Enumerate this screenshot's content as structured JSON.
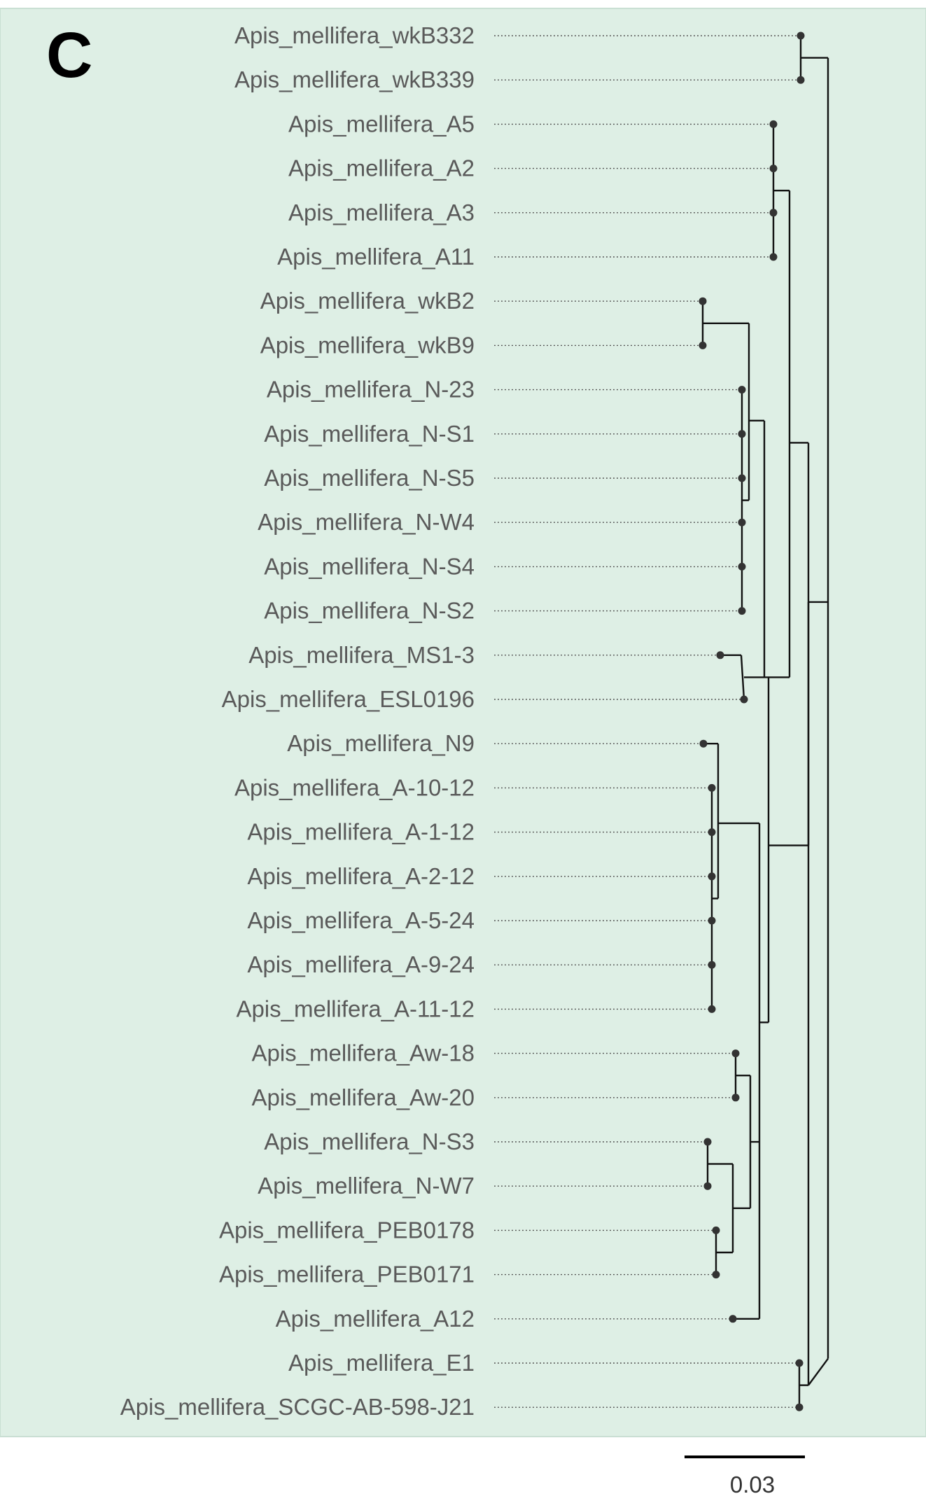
{
  "panel": {
    "letter": "C",
    "background_color": "#deefe5",
    "edge_color": "#c9dfd3"
  },
  "tree": {
    "leaves": [
      "Apis_mellifera_wkB332",
      "Apis_mellifera_wkB339",
      "Apis_mellifera_A5",
      "Apis_mellifera_A2",
      "Apis_mellifera_A3",
      "Apis_mellifera_A11",
      "Apis_mellifera_wkB2",
      "Apis_mellifera_wkB9",
      "Apis_mellifera_N-23",
      "Apis_mellifera_N-S1",
      "Apis_mellifera_N-S5",
      "Apis_mellifera_N-W4",
      "Apis_mellifera_N-S4",
      "Apis_mellifera_N-S2",
      "Apis_mellifera_MS1-3",
      "Apis_mellifera_ESL0196",
      "Apis_mellifera_N9",
      "Apis_mellifera_A-10-12",
      "Apis_mellifera_A-1-12",
      "Apis_mellifera_A-2-12",
      "Apis_mellifera_A-5-24",
      "Apis_mellifera_A-9-24",
      "Apis_mellifera_A-11-12",
      "Apis_mellifera_Aw-18",
      "Apis_mellifera_Aw-20",
      "Apis_mellifera_N-S3",
      "Apis_mellifera_N-W7",
      "Apis_mellifera_PEB0178",
      "Apis_mellifera_PEB0171",
      "Apis_mellifera_A12",
      "Apis_mellifera_E1",
      "Apis_mellifera_SCGC-AB-598-J21"
    ],
    "scale_bar": {
      "label": "0.03"
    }
  }
}
